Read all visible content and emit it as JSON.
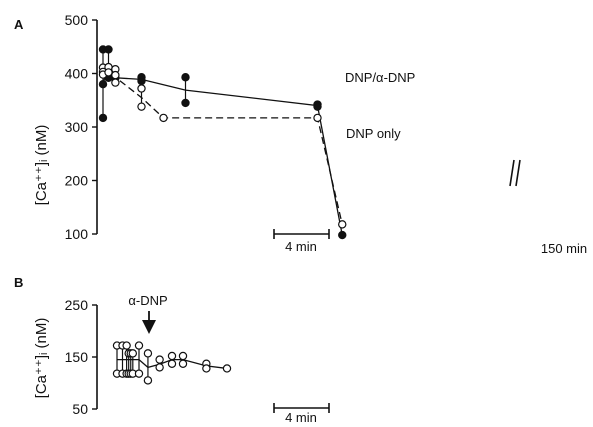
{
  "chart_data": [
    {
      "type": "scatter",
      "panel_label": "A",
      "ylabel": "[Ca⁺⁺]ᵢ  (nM)",
      "ylim": [
        100,
        500
      ],
      "yticks": [
        100,
        200,
        300,
        400,
        500
      ],
      "ytick_labels": [
        "100",
        "200",
        "300",
        "400",
        "500"
      ],
      "scale_bar_label": "4 min",
      "end_label": "150 min",
      "axis_break": true,
      "series": [
        {
          "name": "DNP/α-DNP",
          "marker": "filled-circle",
          "line": "solid",
          "points": [
            {
              "x": 0.0,
              "mean": 380,
              "values": [
                445,
                380,
                317
              ]
            },
            {
              "x": 0.4,
              "mean": 418,
              "values": [
                445,
                392
              ]
            },
            {
              "x": 0.9,
              "mean": 392,
              "values": [
                392
              ]
            },
            {
              "x": 2.8,
              "mean": 389,
              "values": [
                393,
                386
              ]
            },
            {
              "x": 6.0,
              "mean": 369,
              "values": [
                393,
                345
              ]
            },
            {
              "x": 15.6,
              "mean": 340,
              "values": [
                342,
                338
              ]
            },
            {
              "x": 17.4,
              "mean": 98,
              "values": [
                98
              ]
            }
          ]
        },
        {
          "name": "DNP only",
          "marker": "open-circle",
          "line": "dashed",
          "points": [
            {
              "x": 0.0,
              "mean": 405,
              "values": [
                411,
                403,
                398
              ]
            },
            {
              "x": 0.4,
              "mean": 408,
              "values": [
                412,
                402
              ]
            },
            {
              "x": 0.9,
              "mean": 393,
              "values": [
                408,
                397,
                383
              ]
            },
            {
              "x": 2.8,
              "mean": 355,
              "values": [
                372,
                338
              ]
            },
            {
              "x": 4.4,
              "mean": 317,
              "values": [
                317
              ]
            },
            {
              "x": 15.6,
              "mean": 317,
              "values": [
                317
              ]
            },
            {
              "x": 17.4,
              "mean": 118,
              "values": [
                118
              ]
            }
          ]
        }
      ]
    },
    {
      "type": "scatter",
      "panel_label": "B",
      "ylabel": "[Ca⁺⁺]ᵢ  (nM)",
      "ylim": [
        50,
        250
      ],
      "yticks": [
        50,
        150,
        250
      ],
      "ytick_labels": [
        "50",
        "150",
        "250"
      ],
      "scale_bar_label": "4 min",
      "annotation": "α-DNP",
      "annotation_x": 0.9,
      "series": [
        {
          "name": "",
          "marker": "open-circle",
          "line": "solid",
          "points": [
            {
              "x": 0.0,
              "mean": 145,
              "values": [
                172,
                118
              ]
            },
            {
              "x": 0.4,
              "mean": 145,
              "values": [
                172,
                118
              ]
            },
            {
              "x": 0.7,
              "mean": 145,
              "values": [
                172,
                118
              ]
            },
            {
              "x": 0.85,
              "mean": 145,
              "values": [
                157,
                118
              ]
            },
            {
              "x": 1.0,
              "mean": 145,
              "values": [
                157,
                118
              ]
            },
            {
              "x": 1.15,
              "mean": 145,
              "values": [
                157,
                118
              ]
            },
            {
              "x": 1.6,
              "mean": 145,
              "values": [
                172,
                118
              ]
            },
            {
              "x": 2.25,
              "mean": 130,
              "values": [
                157,
                105
              ]
            },
            {
              "x": 3.1,
              "mean": 136,
              "values": [
                145,
                130
              ]
            },
            {
              "x": 4.0,
              "mean": 145,
              "values": [
                152,
                137
              ]
            },
            {
              "x": 4.8,
              "mean": 145,
              "values": [
                152,
                137
              ]
            },
            {
              "x": 6.5,
              "mean": 133,
              "values": [
                137,
                128
              ]
            },
            {
              "x": 8.0,
              "mean": 128,
              "values": [
                128
              ]
            }
          ]
        }
      ]
    }
  ]
}
